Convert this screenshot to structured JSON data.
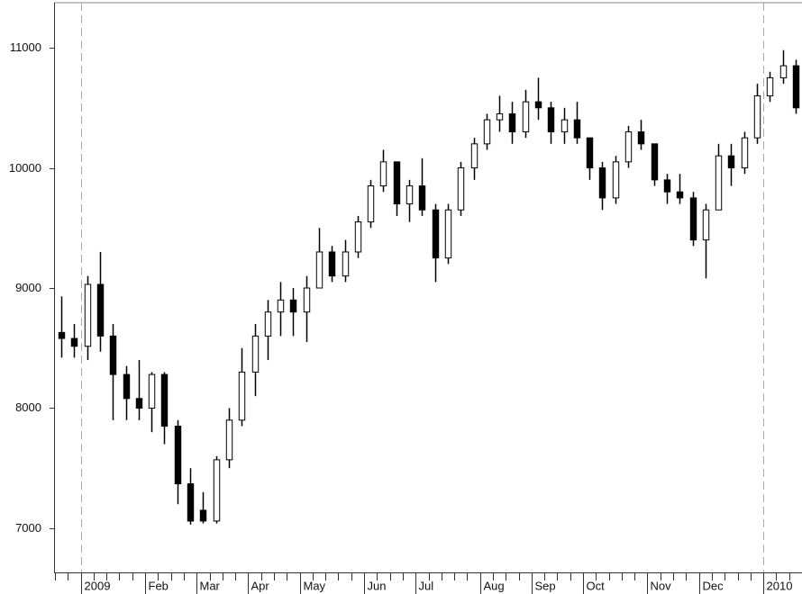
{
  "chart_data": {
    "type": "candlestick",
    "categories": [
      null,
      null,
      "2009",
      null,
      null,
      null,
      null,
      "Feb",
      null,
      null,
      null,
      "Mar",
      null,
      null,
      null,
      "Apr",
      null,
      null,
      null,
      "May",
      null,
      null,
      null,
      null,
      "Jun",
      null,
      null,
      null,
      "Jul",
      null,
      null,
      null,
      null,
      "Aug",
      null,
      null,
      null,
      "Sep",
      null,
      null,
      null,
      "Oct",
      null,
      null,
      null,
      null,
      "Nov",
      null,
      null,
      null,
      "Dec",
      null,
      null,
      null,
      null,
      "2010",
      null,
      null
    ],
    "open": [
      8630,
      8580,
      8515,
      9030,
      8600,
      8280,
      8080,
      8000,
      8280,
      7850,
      7370,
      7150,
      7060,
      7570,
      7900,
      8300,
      8600,
      8800,
      8900,
      8800,
      9000,
      9300,
      9100,
      9300,
      9550,
      9850,
      10050,
      9700,
      9850,
      9650,
      9250,
      9650,
      10000,
      10200,
      10400,
      10450,
      10300,
      10550,
      10500,
      10300,
      10400,
      10250,
      10000,
      9750,
      10050,
      10300,
      10200,
      9900,
      9800,
      9750,
      9400,
      9650,
      10100,
      10000,
      10250,
      10600,
      10750,
      10850
    ],
    "high": [
      8930,
      8700,
      9100,
      9300,
      8700,
      8350,
      8400,
      8300,
      8300,
      7900,
      7500,
      7300,
      7600,
      8000,
      8500,
      8700,
      8900,
      9050,
      9000,
      9100,
      9500,
      9350,
      9400,
      9600,
      9900,
      10150,
      10050,
      9900,
      10080,
      9700,
      9700,
      10050,
      10250,
      10450,
      10600,
      10550,
      10650,
      10750,
      10550,
      10500,
      10550,
      10250,
      10050,
      10100,
      10350,
      10400,
      10200,
      9950,
      9950,
      9800,
      9700,
      10200,
      10200,
      10300,
      10700,
      10800,
      10980,
      10900
    ],
    "low": [
      8420,
      8420,
      8400,
      8470,
      7900,
      7900,
      7900,
      7800,
      7700,
      7200,
      7030,
      7040,
      7040,
      7500,
      7850,
      8100,
      8400,
      8600,
      8600,
      8550,
      9000,
      9050,
      9050,
      9250,
      9500,
      9800,
      9600,
      9550,
      9600,
      9050,
      9200,
      9600,
      9900,
      10150,
      10300,
      10200,
      10250,
      10400,
      10200,
      10200,
      10200,
      9900,
      9650,
      9700,
      10000,
      10150,
      9850,
      9700,
      9700,
      9350,
      9080,
      9650,
      9850,
      9950,
      10200,
      10550,
      10700,
      10450
    ],
    "close": [
      8580,
      8515,
      9030,
      8600,
      8280,
      8080,
      8000,
      8280,
      7850,
      7370,
      7060,
      7060,
      7570,
      7900,
      8300,
      8600,
      8800,
      8900,
      8800,
      9000,
      9300,
      9100,
      9300,
      9550,
      9850,
      10050,
      9700,
      9850,
      9650,
      9250,
      9650,
      10000,
      10200,
      10400,
      10450,
      10300,
      10550,
      10500,
      10300,
      10400,
      10250,
      10000,
      9750,
      10050,
      10300,
      10200,
      9900,
      9800,
      9750,
      9400,
      9650,
      10100,
      10000,
      10250,
      10600,
      10750,
      10850,
      10500
    ],
    "ylim": [
      6625,
      11375
    ],
    "yticks": [
      7000,
      8000,
      9000,
      10000,
      11000
    ],
    "up_color": "#ffffff",
    "down_color": "#000000"
  }
}
